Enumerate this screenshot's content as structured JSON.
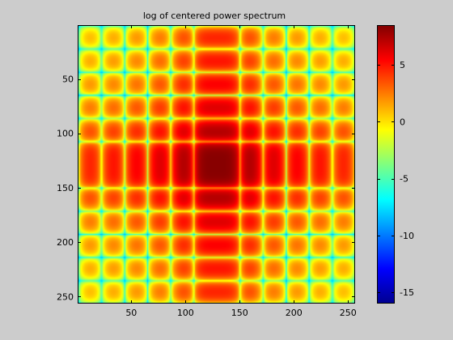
{
  "chart_data": {
    "type": "heatmap",
    "title": "log of centered power spectrum",
    "xlabel": "",
    "ylabel": "",
    "x_range": [
      0.5,
      256.5
    ],
    "y_range": [
      0.5,
      256.5
    ],
    "y_direction": "down",
    "x_ticks": [
      50,
      100,
      150,
      200,
      250
    ],
    "y_ticks": [
      50,
      100,
      150,
      200,
      250
    ],
    "center": [
      129,
      129
    ],
    "lobe_period": 21.3,
    "main_lobe_width": 42.6,
    "colormap": "jet",
    "colorbar": {
      "clim": [
        -16,
        8.5
      ],
      "ticks": [
        -15,
        -10,
        -5,
        0,
        5
      ]
    },
    "grid": false,
    "colors": {
      "figure_background": "#cccccc",
      "axes_frame": "#000000"
    }
  }
}
